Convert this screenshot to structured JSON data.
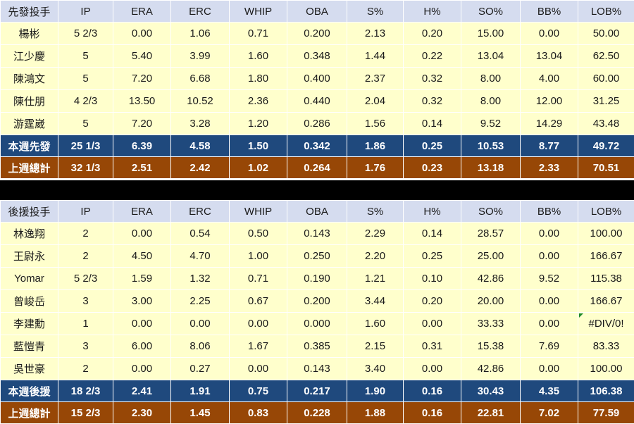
{
  "columns": [
    "IP",
    "ERA",
    "ERC",
    "WHIP",
    "OBA",
    "S%",
    "H%",
    "SO%",
    "BB%",
    "LOB%"
  ],
  "starters": {
    "header": "先發投手",
    "rows": [
      {
        "name": "楊彬",
        "values": [
          "5 2/3",
          "0.00",
          "1.06",
          "0.71",
          "0.200",
          "2.13",
          "0.20",
          "15.00",
          "0.00",
          "50.00"
        ]
      },
      {
        "name": "江少慶",
        "values": [
          "5",
          "5.40",
          "3.99",
          "1.60",
          "0.348",
          "1.44",
          "0.22",
          "13.04",
          "13.04",
          "62.50"
        ]
      },
      {
        "name": "陳鴻文",
        "values": [
          "5",
          "7.20",
          "6.68",
          "1.80",
          "0.400",
          "2.37",
          "0.32",
          "8.00",
          "4.00",
          "60.00"
        ]
      },
      {
        "name": "陳仕朋",
        "values": [
          "4 2/3",
          "13.50",
          "10.52",
          "2.36",
          "0.440",
          "2.04",
          "0.32",
          "8.00",
          "12.00",
          "31.25"
        ]
      },
      {
        "name": "游霆崴",
        "values": [
          "5",
          "7.20",
          "3.28",
          "1.20",
          "0.286",
          "1.56",
          "0.14",
          "9.52",
          "14.29",
          "43.48"
        ]
      }
    ],
    "this_week": {
      "label": "本週先發",
      "values": [
        "25 1/3",
        "6.39",
        "4.58",
        "1.50",
        "0.342",
        "1.86",
        "0.25",
        "10.53",
        "8.77",
        "49.72"
      ]
    },
    "last_week": {
      "label": "上週總計",
      "values": [
        "32 1/3",
        "2.51",
        "2.42",
        "1.02",
        "0.264",
        "1.76",
        "0.23",
        "13.18",
        "2.33",
        "70.51"
      ]
    }
  },
  "relievers": {
    "header": "後援投手",
    "rows": [
      {
        "name": "林逸翔",
        "values": [
          "2",
          "0.00",
          "0.54",
          "0.50",
          "0.143",
          "2.29",
          "0.14",
          "28.57",
          "0.00",
          "100.00"
        ]
      },
      {
        "name": "王尉永",
        "values": [
          "2",
          "4.50",
          "4.70",
          "1.00",
          "0.250",
          "2.20",
          "0.25",
          "25.00",
          "0.00",
          "166.67"
        ]
      },
      {
        "name": "Yomar",
        "values": [
          "5 2/3",
          "1.59",
          "1.32",
          "0.71",
          "0.190",
          "1.21",
          "0.10",
          "42.86",
          "9.52",
          "115.38"
        ]
      },
      {
        "name": "曾峻岳",
        "values": [
          "3",
          "3.00",
          "2.25",
          "0.67",
          "0.200",
          "3.44",
          "0.20",
          "20.00",
          "0.00",
          "166.67"
        ]
      },
      {
        "name": "李建勳",
        "values": [
          "1",
          "0.00",
          "0.00",
          "0.00",
          "0.000",
          "1.60",
          "0.00",
          "33.33",
          "0.00",
          "#DIV/0!"
        ]
      },
      {
        "name": "藍愷青",
        "values": [
          "3",
          "6.00",
          "8.06",
          "1.67",
          "0.385",
          "2.15",
          "0.31",
          "15.38",
          "7.69",
          "83.33"
        ]
      },
      {
        "name": "吳世豪",
        "values": [
          "2",
          "0.00",
          "0.27",
          "0.00",
          "0.143",
          "3.40",
          "0.00",
          "42.86",
          "0.00",
          "100.00"
        ]
      }
    ],
    "this_week": {
      "label": "本週後援",
      "values": [
        "18 2/3",
        "2.41",
        "1.91",
        "0.75",
        "0.217",
        "1.90",
        "0.16",
        "30.43",
        "4.35",
        "106.38"
      ]
    },
    "last_week": {
      "label": "上週總計",
      "values": [
        "15 2/3",
        "2.30",
        "1.45",
        "0.83",
        "0.228",
        "1.88",
        "0.16",
        "22.81",
        "7.02",
        "77.59"
      ]
    }
  },
  "colors": {
    "header_bg": "#d5dcef",
    "row_bg": "#ffffcc",
    "this_week_bg": "#1f497d",
    "last_week_bg": "#974706",
    "separator": "#000000"
  }
}
